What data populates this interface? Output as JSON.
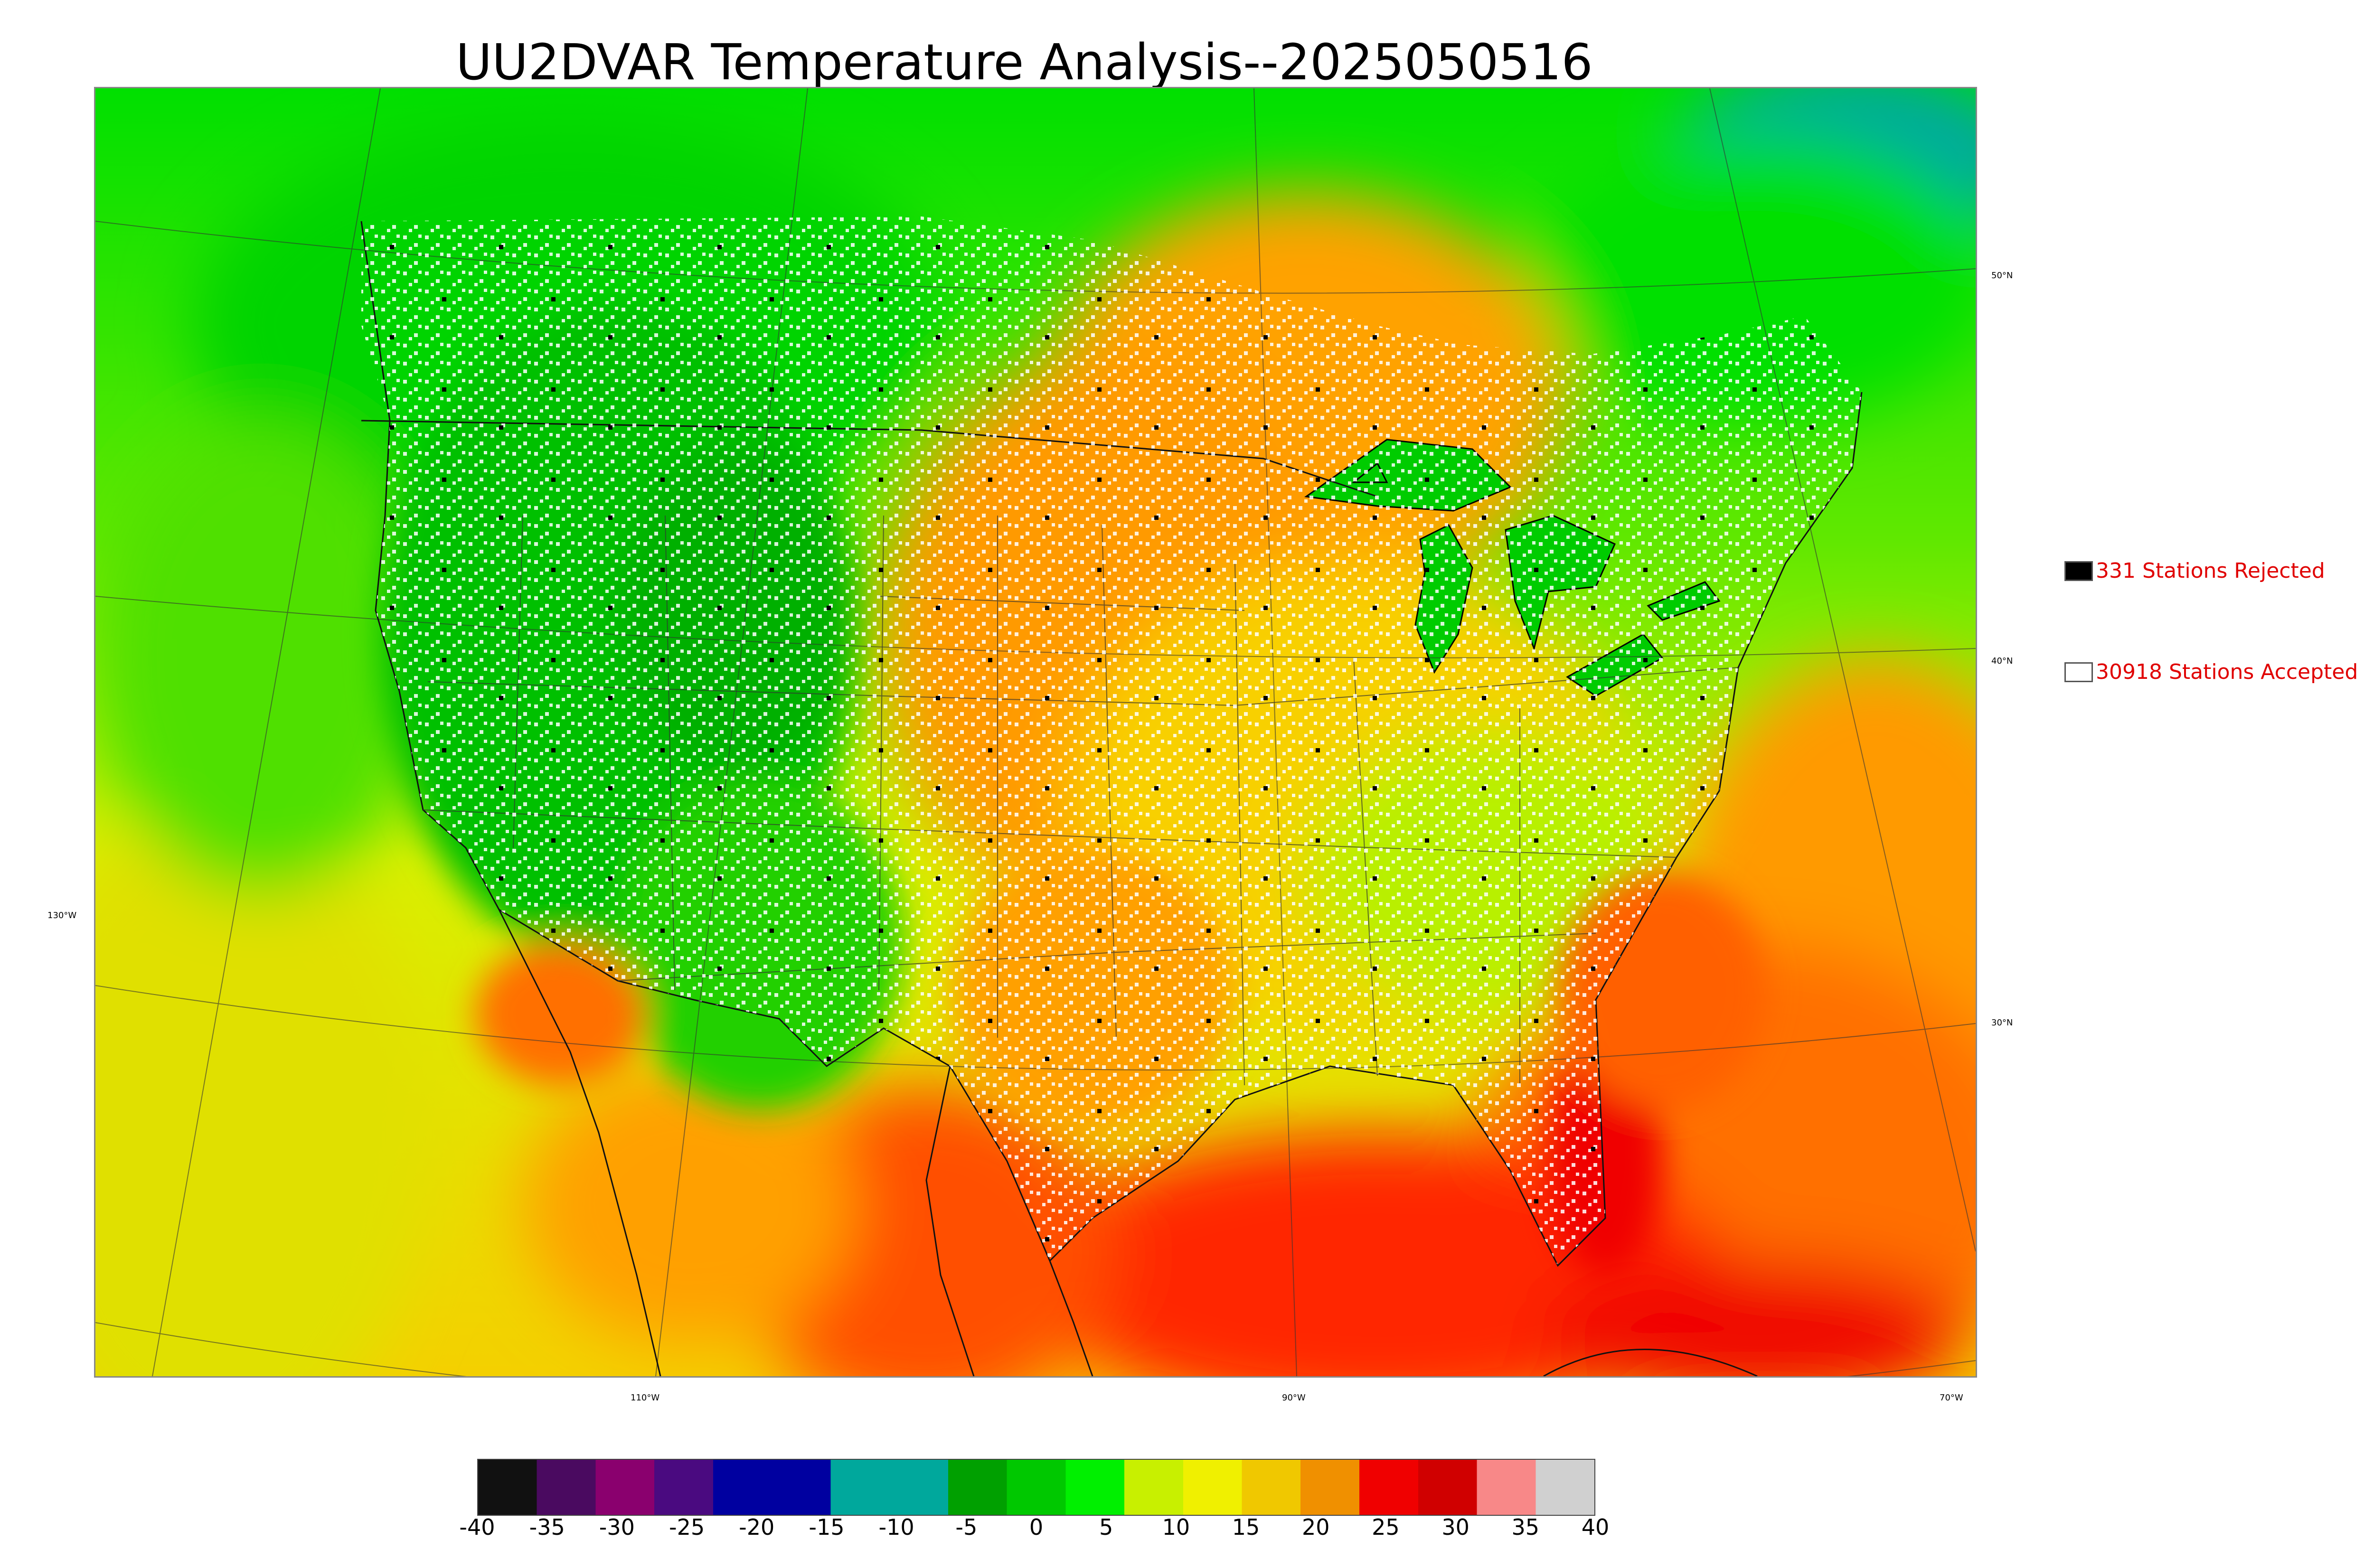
{
  "title": "UU2DVAR Temperature Analysis--2025050516",
  "graticule_labels": {
    "lat_50": "50°N",
    "lat_40": "40°N",
    "lat_30": "30°N",
    "lon_130": "130°W",
    "lon_110": "110°W",
    "lon_90": "90°W",
    "lon_70": "70°W"
  },
  "legend": {
    "rejected": {
      "label": "331 Stations Rejected",
      "swatch_color": "#000000"
    },
    "accepted": {
      "label": "30918 Stations Accepted",
      "swatch_color": "#ffffff"
    }
  },
  "colorbar": {
    "ticks": [
      "-40",
      "-35",
      "-30",
      "-25",
      "-20",
      "-15",
      "-10",
      "-5",
      "0",
      "5",
      "10",
      "15",
      "20",
      "25",
      "30",
      "35",
      "40"
    ],
    "range": [
      -40,
      40
    ],
    "colors": [
      "#111111",
      "#4a0a60",
      "#8a006e",
      "#4a0a80",
      "#0000a0",
      "#0000a0",
      "#00a89c",
      "#00a89c",
      "#00a000",
      "#00c800",
      "#00f000",
      "#c8f000",
      "#f0f000",
      "#f0c800",
      "#f09000",
      "#f00000",
      "#d00000",
      "#f88888",
      "#d0d0d0"
    ]
  },
  "map_colors": {
    "ocean_west": "#e8e800",
    "gulf": "#ff3000",
    "atlantic": "#ff9a00",
    "canada": "#00e000",
    "plains": "#ffa000",
    "rockies": "#00c000",
    "great_lakes": "#00d000",
    "hudson_bay": "#00a8a0"
  }
}
